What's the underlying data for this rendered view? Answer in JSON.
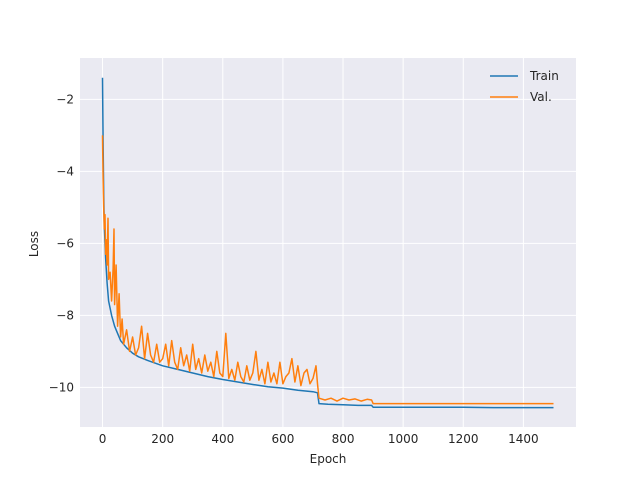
{
  "chart_data": {
    "type": "line",
    "title": "",
    "xlabel": "Epoch",
    "ylabel": "Loss",
    "xlim": [
      -75,
      1575
    ],
    "ylim": [
      -11.1,
      -0.85
    ],
    "xticks": [
      0,
      200,
      400,
      600,
      800,
      1000,
      1200,
      1400
    ],
    "yticks": [
      -2,
      -4,
      -6,
      -8,
      -10
    ],
    "xtick_labels": [
      "0",
      "200",
      "400",
      "600",
      "800",
      "1000",
      "1200",
      "1400"
    ],
    "ytick_labels": [
      "−2",
      "−4",
      "−6",
      "−8",
      "−10"
    ],
    "grid": true,
    "legend_position": "top-right",
    "series": [
      {
        "name": "Train",
        "color": "#1f77b4",
        "x": [
          0,
          2,
          4,
          6,
          10,
          15,
          20,
          30,
          40,
          50,
          60,
          80,
          100,
          120,
          150,
          200,
          250,
          300,
          350,
          400,
          450,
          500,
          550,
          600,
          650,
          700,
          715,
          720,
          750,
          800,
          850,
          895,
          900,
          950,
          1000,
          1100,
          1200,
          1300,
          1400,
          1500
        ],
        "y": [
          -1.4,
          -3.2,
          -4.6,
          -5.5,
          -6.4,
          -7.1,
          -7.6,
          -8.0,
          -8.3,
          -8.5,
          -8.7,
          -8.9,
          -9.05,
          -9.15,
          -9.25,
          -9.4,
          -9.5,
          -9.6,
          -9.7,
          -9.78,
          -9.85,
          -9.92,
          -9.98,
          -10.02,
          -10.08,
          -10.12,
          -10.15,
          -10.45,
          -10.47,
          -10.48,
          -10.5,
          -10.5,
          -10.55,
          -10.55,
          -10.55,
          -10.55,
          -10.55,
          -10.56,
          -10.56,
          -10.56
        ]
      },
      {
        "name": "Val.",
        "color": "#ff7f0e",
        "x": [
          0,
          2,
          4,
          6,
          8,
          10,
          12,
          15,
          18,
          20,
          25,
          30,
          35,
          38,
          40,
          45,
          50,
          55,
          60,
          65,
          70,
          80,
          90,
          100,
          110,
          120,
          130,
          140,
          150,
          160,
          170,
          180,
          190,
          200,
          210,
          220,
          230,
          240,
          250,
          260,
          270,
          280,
          290,
          300,
          310,
          320,
          330,
          340,
          350,
          360,
          370,
          380,
          390,
          400,
          410,
          420,
          430,
          440,
          450,
          460,
          470,
          480,
          490,
          500,
          510,
          520,
          530,
          540,
          550,
          560,
          570,
          580,
          590,
          600,
          610,
          620,
          630,
          640,
          650,
          660,
          670,
          680,
          690,
          700,
          710,
          715,
          720,
          740,
          760,
          780,
          800,
          820,
          840,
          860,
          880,
          895,
          900,
          950,
          1000,
          1100,
          1200,
          1300,
          1400,
          1500
        ],
        "y": [
          -3.0,
          -4.2,
          -5.0,
          -5.6,
          -5.2,
          -6.3,
          -5.9,
          -6.6,
          -5.3,
          -7.0,
          -6.8,
          -7.6,
          -6.7,
          -5.6,
          -7.7,
          -6.6,
          -8.3,
          -7.4,
          -8.6,
          -8.1,
          -8.8,
          -8.4,
          -9.0,
          -8.6,
          -9.1,
          -8.9,
          -8.3,
          -9.2,
          -8.5,
          -9.1,
          -9.3,
          -8.8,
          -9.3,
          -9.2,
          -8.8,
          -9.4,
          -8.7,
          -9.3,
          -9.5,
          -8.9,
          -9.4,
          -9.1,
          -9.55,
          -8.8,
          -9.5,
          -9.2,
          -9.6,
          -9.1,
          -9.55,
          -9.3,
          -9.7,
          -9.0,
          -9.6,
          -9.7,
          -8.5,
          -9.75,
          -9.5,
          -9.8,
          -9.3,
          -9.7,
          -9.85,
          -9.4,
          -9.8,
          -9.6,
          -9.0,
          -9.8,
          -9.5,
          -9.9,
          -9.3,
          -9.85,
          -9.6,
          -9.9,
          -9.3,
          -9.9,
          -9.7,
          -9.6,
          -9.2,
          -9.85,
          -9.4,
          -9.95,
          -9.6,
          -9.5,
          -9.9,
          -9.75,
          -9.4,
          -9.9,
          -10.3,
          -10.35,
          -10.3,
          -10.38,
          -10.3,
          -10.35,
          -10.32,
          -10.38,
          -10.33,
          -10.35,
          -10.45,
          -10.45,
          -10.45,
          -10.45,
          -10.45,
          -10.45,
          -10.45,
          -10.45
        ]
      }
    ]
  }
}
